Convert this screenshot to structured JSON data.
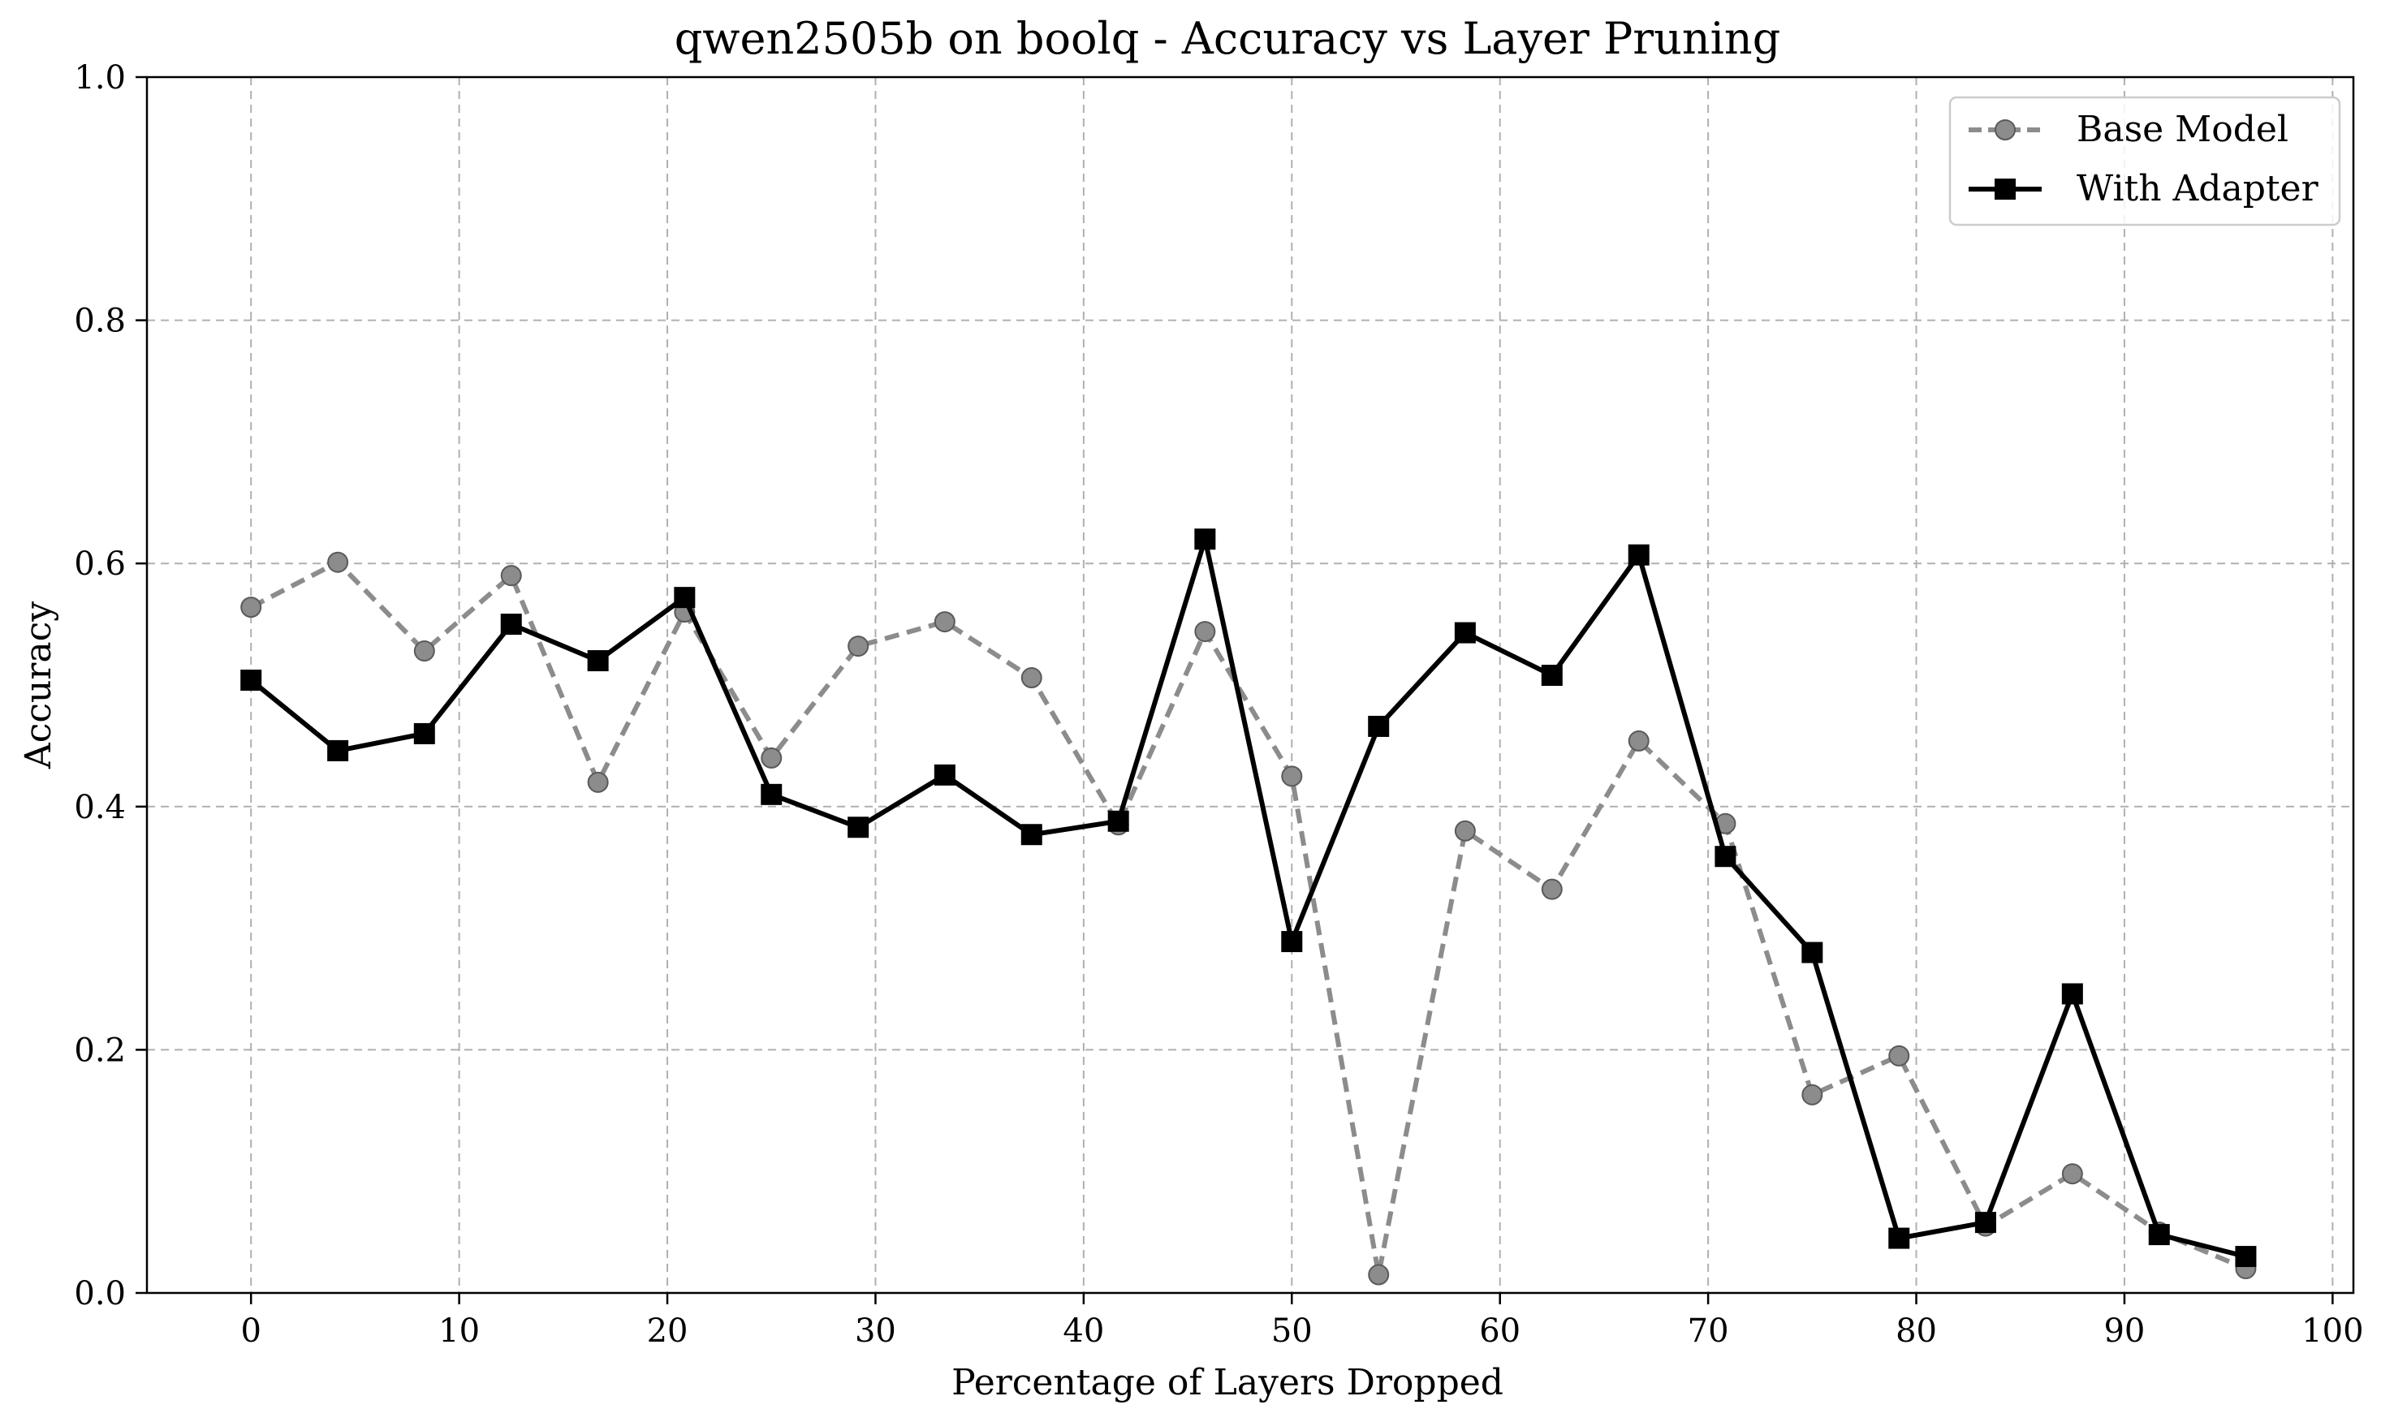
{
  "chart_data": {
    "type": "line",
    "title": "qwen2505b on boolq - Accuracy vs Layer Pruning",
    "xlabel": "Percentage of Layers Dropped",
    "ylabel": "Accuracy",
    "xlim": [
      -5,
      101
    ],
    "ylim": [
      0,
      1.0
    ],
    "xticks": [
      0,
      10,
      20,
      30,
      40,
      50,
      60,
      70,
      80,
      90,
      100
    ],
    "yticks": [
      0.0,
      0.2,
      0.4,
      0.6,
      0.8,
      1.0
    ],
    "xtick_labels": [
      "0",
      "10",
      "20",
      "30",
      "40",
      "50",
      "60",
      "70",
      "80",
      "90",
      "100"
    ],
    "ytick_labels": [
      "0.0",
      "0.2",
      "0.4",
      "0.6",
      "0.8",
      "1.0"
    ],
    "grid": true,
    "legend_position": "top-right",
    "x": [
      0,
      4.17,
      8.33,
      12.5,
      16.67,
      20.83,
      25,
      29.17,
      33.33,
      37.5,
      41.67,
      45.83,
      50,
      54.17,
      58.33,
      62.5,
      66.67,
      70.83,
      75,
      79.17,
      83.33,
      87.5,
      91.67,
      95.83
    ],
    "series": [
      {
        "name": "Base Model",
        "style": "dashed",
        "marker": "circle",
        "color": "#8c8c8c",
        "values": [
          0.564,
          0.601,
          0.528,
          0.59,
          0.42,
          0.56,
          0.44,
          0.532,
          0.552,
          0.506,
          0.385,
          0.544,
          0.425,
          0.015,
          0.38,
          0.332,
          0.454,
          0.386,
          0.163,
          0.195,
          0.055,
          0.098,
          0.05,
          0.02
        ]
      },
      {
        "name": "With Adapter",
        "style": "solid",
        "marker": "square",
        "color": "#000000",
        "values": [
          0.504,
          0.446,
          0.46,
          0.55,
          0.52,
          0.572,
          0.41,
          0.383,
          0.426,
          0.377,
          0.388,
          0.62,
          0.289,
          0.466,
          0.543,
          0.508,
          0.607,
          0.359,
          0.28,
          0.045,
          0.058,
          0.246,
          0.048,
          0.03
        ]
      }
    ]
  }
}
